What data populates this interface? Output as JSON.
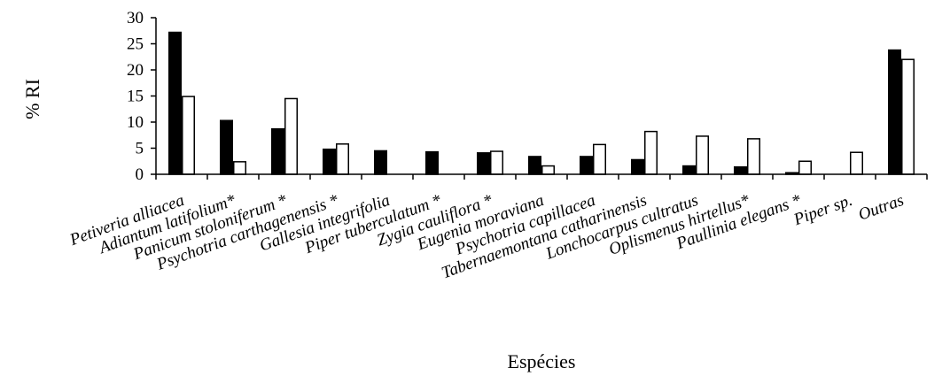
{
  "chart_data": {
    "type": "bar",
    "title": "",
    "xlabel": "Espécies",
    "ylabel": "% RI",
    "ylim": [
      0,
      30
    ],
    "yticks": [
      0,
      5,
      10,
      15,
      20,
      25,
      30
    ],
    "grid": false,
    "legend": "none",
    "categories": [
      "Petiveria alliacea",
      "Adiantum latifolium*",
      "Panicum stoloniferum *",
      "Psychotria carthagenensis *",
      "Gallesia integrifolia",
      "Piper tuberculatum *",
      "Zygia cauliflora *",
      "Eugenia moraviana",
      "Psychotria capillacea",
      "Tabernaemontana catharinensis",
      "Lonchocarpus cultratus",
      "Oplismenus hirtellus*",
      "Paullinia elegans *",
      "Piper sp.",
      "Outras"
    ],
    "series": [
      {
        "fill": "#000000",
        "values": [
          27.2,
          10.3,
          8.7,
          4.8,
          4.5,
          4.3,
          4.1,
          3.4,
          3.4,
          2.8,
          1.6,
          1.4,
          0.3,
          0,
          23.8
        ]
      },
      {
        "fill": "#ffffff",
        "values": [
          14.9,
          2.4,
          14.5,
          5.8,
          0,
          0,
          4.4,
          1.6,
          5.7,
          8.2,
          7.3,
          6.8,
          2.5,
          4.2,
          22.0
        ]
      }
    ]
  }
}
